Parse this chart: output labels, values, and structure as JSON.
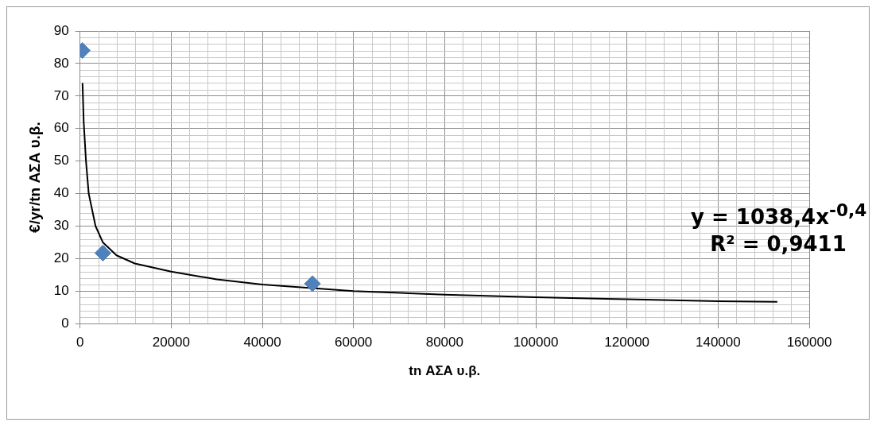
{
  "chart_data": {
    "type": "scatter",
    "xlabel": "tn ΑΣΑ υ.β.",
    "ylabel": "€/yr/tn ΑΣΑ υ.β.",
    "xlim": [
      0,
      160000
    ],
    "xticks": [
      0,
      20000,
      40000,
      60000,
      80000,
      100000,
      120000,
      140000,
      160000
    ],
    "ylim": [
      0,
      90
    ],
    "yticks": [
      0,
      10,
      20,
      30,
      40,
      50,
      60,
      70,
      80,
      90
    ],
    "grid": true,
    "marker": "diamond",
    "annotations": [
      "y = 1038,4x$^{-0,4}$",
      "R² = 0,9411"
    ],
    "series": [
      {
        "type": "scatter",
        "color": "#4f81bd",
        "x": [
          500,
          5000,
          51000
        ],
        "values": [
          84,
          21.7,
          12.3
        ]
      },
      {
        "type": "line",
        "color": "#000000",
        "marker": "none",
        "x": [
          540,
          800,
          1300,
          1900,
          3400,
          5000,
          8000,
          12000,
          20000,
          30000,
          40000,
          60000,
          80000,
          100000,
          120000,
          140000,
          153000
        ],
        "values": [
          74,
          62,
          50,
          40,
          30,
          25,
          21,
          18.5,
          16,
          13.6,
          12,
          10,
          8.9,
          8.1,
          7.5,
          6.9,
          6.7
        ]
      }
    ]
  }
}
